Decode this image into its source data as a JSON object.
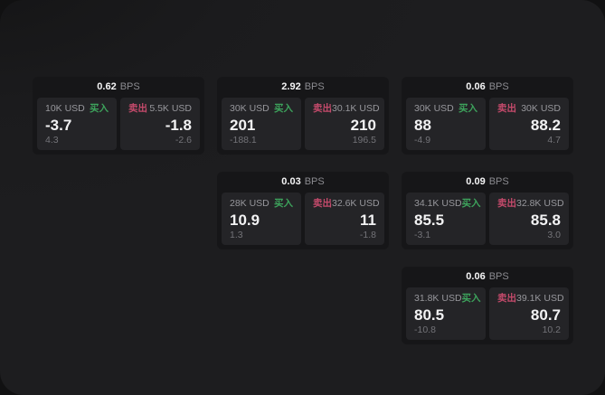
{
  "labels": {
    "bps_unit": "BPS",
    "buy": "买入",
    "sell": "卖出"
  },
  "colors": {
    "buy": "#3da35c",
    "sell": "#c44a6b",
    "panel_bg": "#1d1d1f",
    "card_bg": "#161618",
    "tile_bg": "#242427"
  },
  "cards": [
    {
      "col": 1,
      "row": 1,
      "bps": "0.62",
      "buy": {
        "notional": "10K USD",
        "price": "-3.7",
        "delta": "4.3"
      },
      "sell": {
        "notional": "5.5K USD",
        "price": "-1.8",
        "delta": "-2.6"
      }
    },
    {
      "col": 2,
      "row": 1,
      "bps": "2.92",
      "buy": {
        "notional": "30K USD",
        "price": "201",
        "delta": "-188.1"
      },
      "sell": {
        "notional": "30.1K USD",
        "price": "210",
        "delta": "196.5"
      }
    },
    {
      "col": 3,
      "row": 1,
      "bps": "0.06",
      "buy": {
        "notional": "30K USD",
        "price": "88",
        "delta": "-4.9"
      },
      "sell": {
        "notional": "30K USD",
        "price": "88.2",
        "delta": "4.7"
      }
    },
    {
      "col": 2,
      "row": 2,
      "bps": "0.03",
      "buy": {
        "notional": "28K USD",
        "price": "10.9",
        "delta": "1.3"
      },
      "sell": {
        "notional": "32.6K USD",
        "price": "11",
        "delta": "-1.8"
      }
    },
    {
      "col": 3,
      "row": 2,
      "bps": "0.09",
      "buy": {
        "notional": "34.1K USD",
        "price": "85.5",
        "delta": "-3.1"
      },
      "sell": {
        "notional": "32.8K USD",
        "price": "85.8",
        "delta": "3.0"
      }
    },
    {
      "col": 3,
      "row": 3,
      "bps": "0.06",
      "buy": {
        "notional": "31.8K USD",
        "price": "80.5",
        "delta": "-10.8"
      },
      "sell": {
        "notional": "39.1K USD",
        "price": "80.7",
        "delta": "10.2"
      }
    }
  ]
}
